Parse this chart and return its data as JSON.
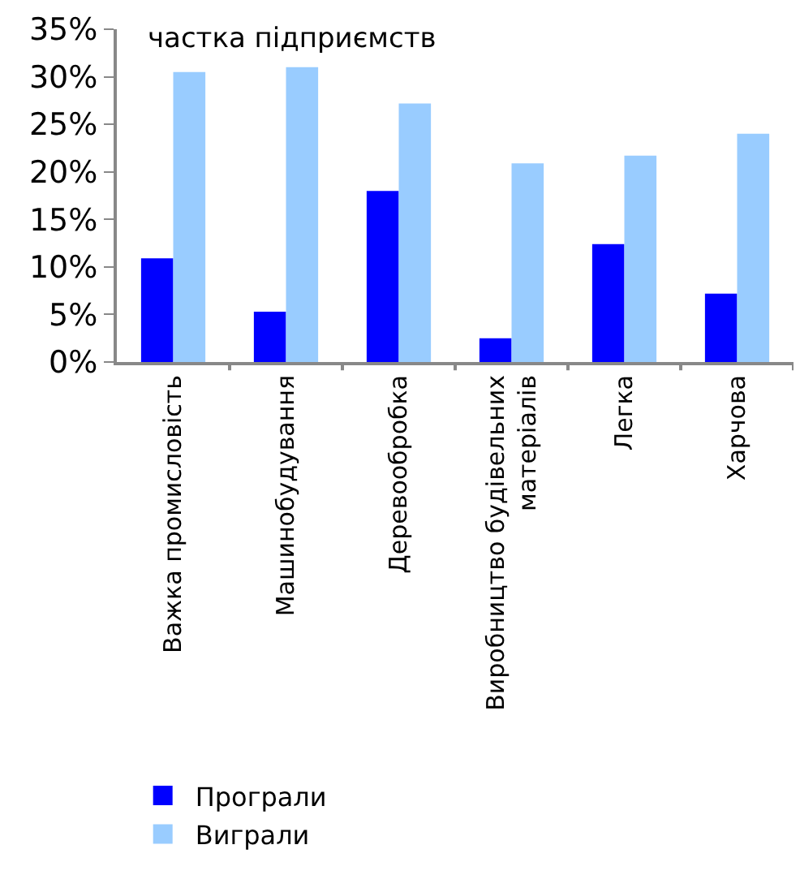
{
  "chart_data": {
    "type": "bar",
    "title": "частка підприємств",
    "categories": [
      "Важка промисловість",
      "Машинобудування",
      "Деревообробка",
      "Виробництво будівельних матеріалів",
      "Легка",
      "Харчова"
    ],
    "series": [
      {
        "name": "Програли",
        "color": "#0000ff",
        "values": [
          10.9,
          5.3,
          18.0,
          2.5,
          12.4,
          7.2
        ]
      },
      {
        "name": "Виграли",
        "color": "#99ccff",
        "values": [
          30.5,
          31.0,
          27.2,
          20.9,
          21.7,
          24.0
        ]
      }
    ],
    "ylim": [
      0,
      35
    ],
    "yticks": [
      {
        "value": 0,
        "label": "0%"
      },
      {
        "value": 5,
        "label": "5%"
      },
      {
        "value": 10,
        "label": "10%"
      },
      {
        "value": 15,
        "label": "15%"
      },
      {
        "value": 20,
        "label": "20%"
      },
      {
        "value": 25,
        "label": "25%"
      },
      {
        "value": 30,
        "label": "30%"
      },
      {
        "value": 35,
        "label": "35%"
      }
    ],
    "grid": false,
    "legend": "bottom"
  }
}
